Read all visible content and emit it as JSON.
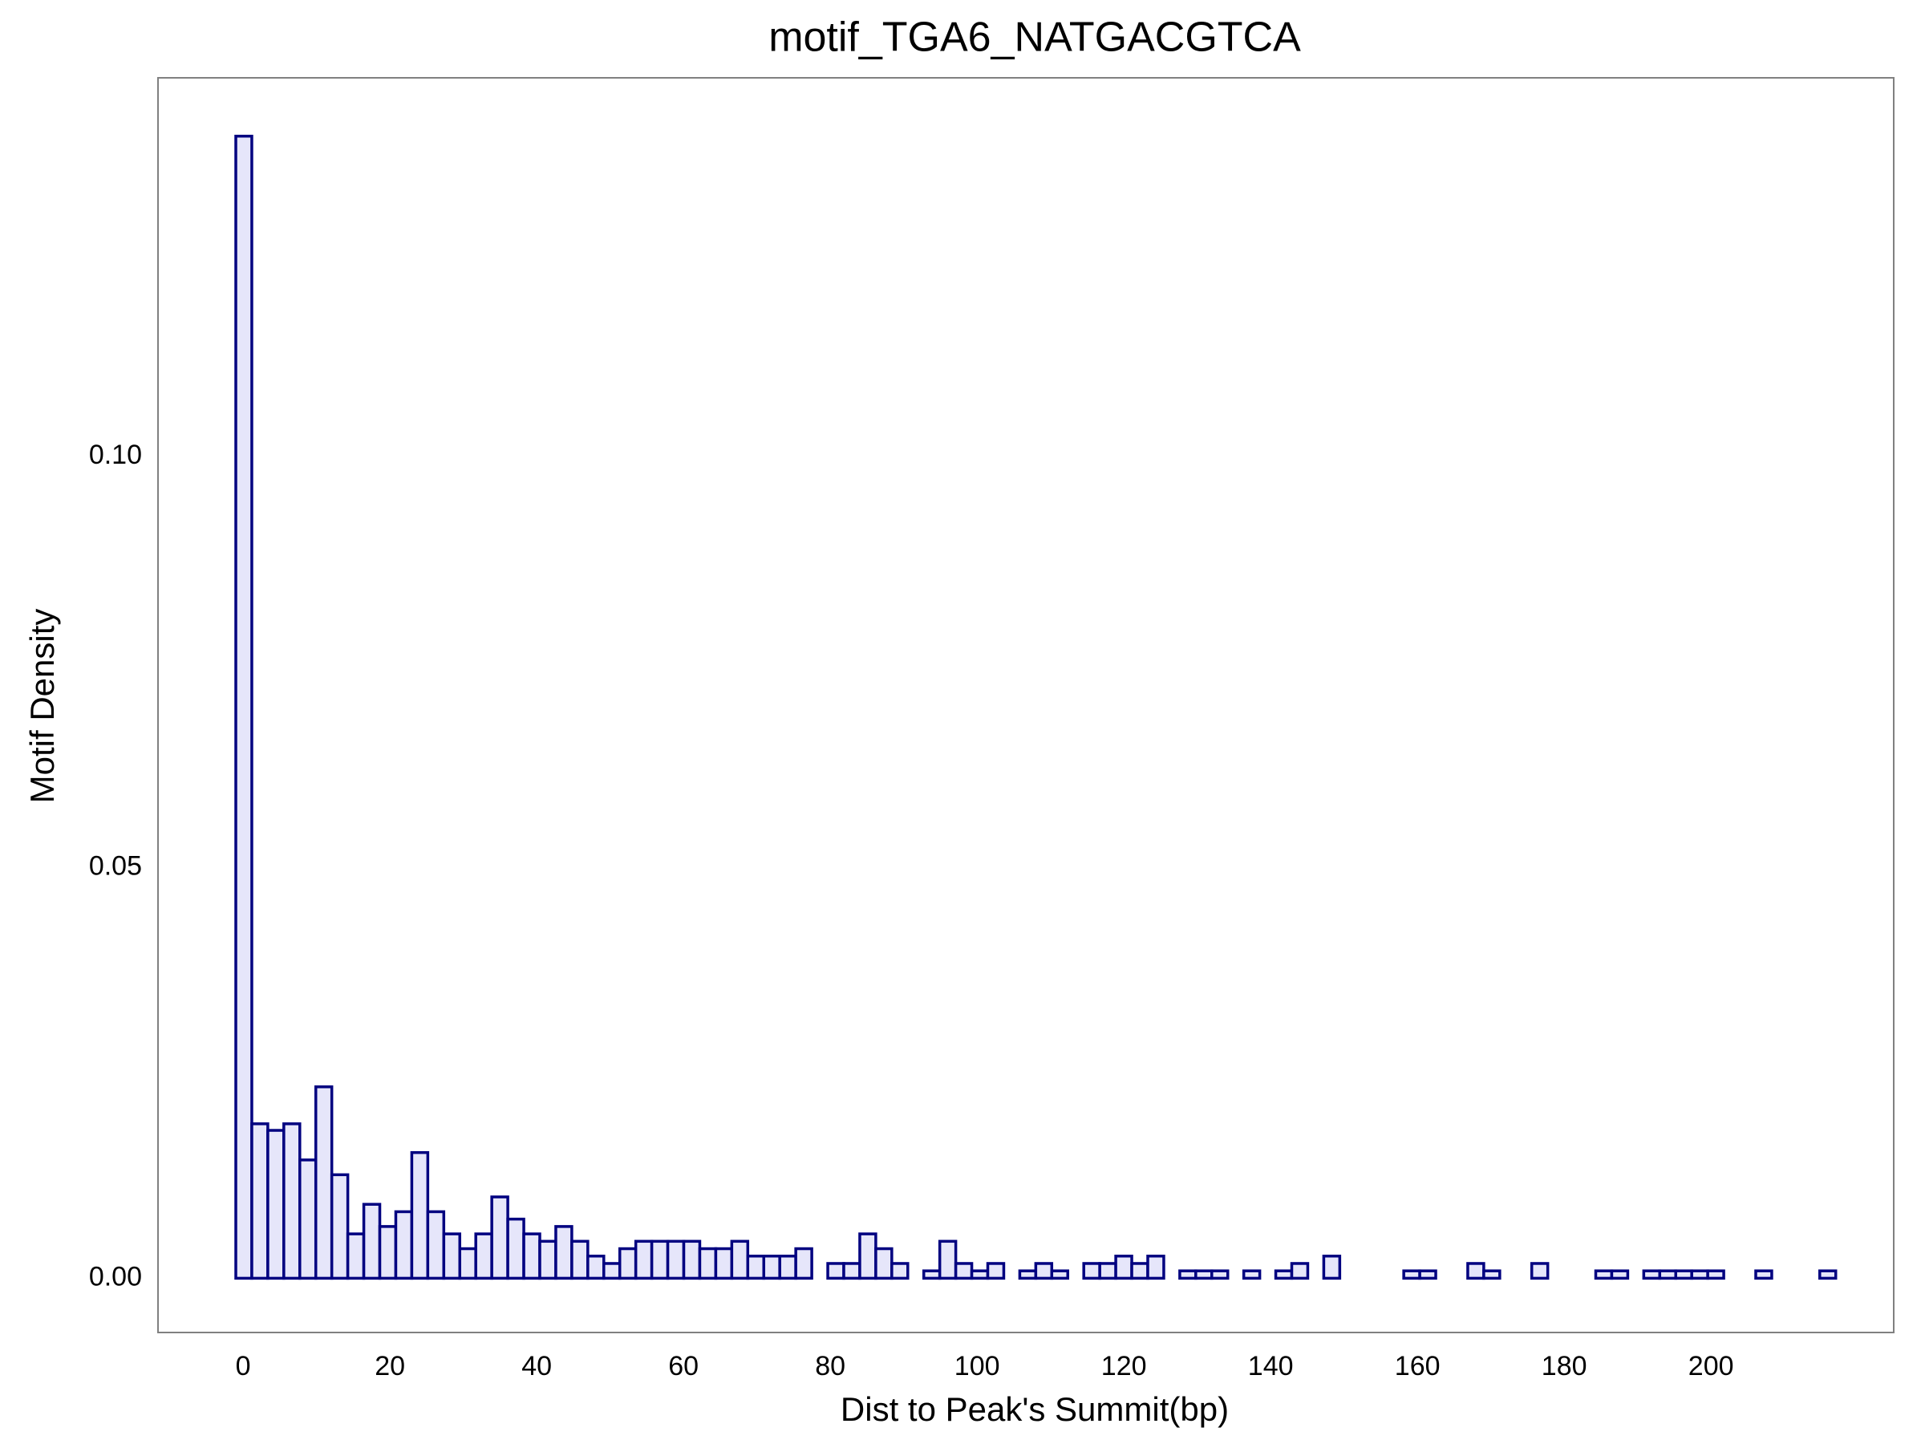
{
  "chart_data": {
    "type": "histogram",
    "title": "motif_TGA6_NATGACGTCA",
    "xlabel": "Dist to Peak's Summit(bp)",
    "ylabel": "Motif Density",
    "bins": [
      -1,
      1.18,
      3.36,
      5.54,
      7.72,
      9.9,
      12.08,
      14.26,
      16.44,
      18.62,
      20.8,
      22.98,
      25.16,
      27.34,
      29.52,
      31.7,
      33.88,
      36.06,
      38.24,
      40.42,
      42.6,
      44.78,
      46.96,
      49.14,
      51.32,
      53.5,
      55.68,
      57.86,
      60.04,
      62.22,
      64.4,
      66.58,
      68.76,
      70.94,
      73.12,
      75.3,
      77.48,
      79.66,
      81.84,
      84.02,
      86.2,
      88.38,
      90.56,
      92.74,
      94.92,
      97.1,
      99.28,
      101.46,
      103.64,
      105.82,
      108,
      110.18,
      112.36,
      114.54,
      116.72,
      118.9,
      121.08,
      123.26,
      125.44,
      127.62,
      129.8,
      131.98,
      134.16,
      136.34,
      138.52,
      140.7,
      142.88,
      145.06,
      147.24,
      149.42,
      151.6,
      153.78,
      155.96,
      158.14,
      160.32,
      162.5,
      164.68,
      166.86,
      169.04,
      171.22,
      173.4,
      175.58,
      177.76,
      179.94,
      182.12,
      184.3,
      186.48,
      188.66,
      190.84,
      193.02,
      195.2,
      197.38,
      199.56,
      201.74,
      203.92,
      206.1,
      208.28,
      210.46,
      212.64,
      214.82,
      217
    ],
    "counts": [
      0.139,
      0.0188,
      0.018,
      0.0188,
      0.0144,
      0.0233,
      0.0126,
      0.0054,
      0.009,
      0.0063,
      0.0081,
      0.0153,
      0.0081,
      0.0054,
      0.0036,
      0.0054,
      0.0099,
      0.0072,
      0.0054,
      0.0045,
      0.0063,
      0.0045,
      0.0027,
      0.0018,
      0.0036,
      0.0045,
      0.0045,
      0.0045,
      0.0045,
      0.0036,
      0.0036,
      0.0045,
      0.0027,
      0.0027,
      0.0027,
      0.0036,
      0,
      0.0018,
      0.0018,
      0.0054,
      0.0036,
      0.0018,
      0,
      0.0009,
      0.0045,
      0.0018,
      0.0009,
      0.0018,
      0,
      0.0009,
      0.0018,
      0.0009,
      0,
      0.0018,
      0.0018,
      0.0027,
      0.0018,
      0.0027,
      0,
      0.0009,
      0.0009,
      0.0009,
      0,
      0.0009,
      0,
      0.0009,
      0.0018,
      0,
      0.0027,
      0,
      0,
      0,
      0,
      0.0009,
      0.0009,
      0,
      0,
      0.0018,
      0.0009,
      0,
      0,
      0.0018,
      0,
      0,
      0,
      0.0009,
      0.0009,
      0,
      0.0009,
      0.0009,
      0.0009,
      0.0009,
      0.0009,
      0,
      0,
      0.0009,
      0,
      0,
      0,
      0.0009
    ],
    "color": "#e6e6fa",
    "edgecolor": "#000080",
    "xlim": [
      -11.6,
      224.9
    ],
    "ylim": [
      -0.0066,
      0.1461
    ],
    "xticks": [
      0,
      20,
      40,
      60,
      80,
      100,
      120,
      140,
      160,
      180,
      200
    ],
    "yticks": [
      {
        "value": 0,
        "label": "0.00"
      },
      {
        "value": 0.05,
        "label": "0.05"
      },
      {
        "value": 0.1,
        "label": "0.10"
      }
    ],
    "grid": false
  }
}
